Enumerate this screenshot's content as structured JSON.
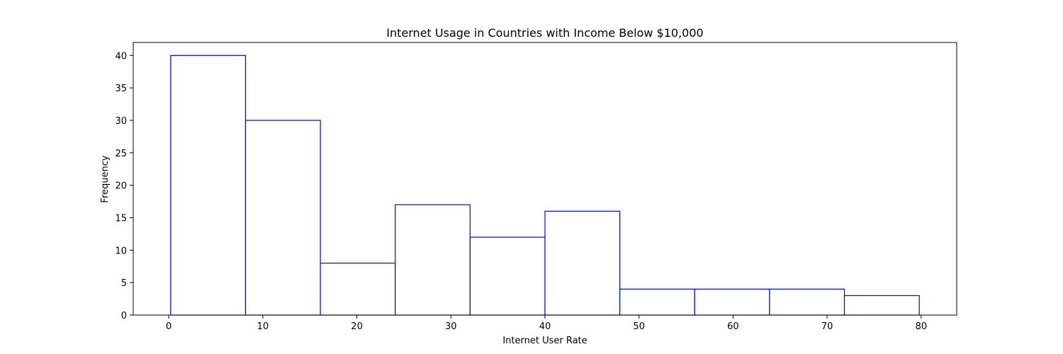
{
  "chart_data": {
    "type": "bar",
    "title": "Internet Usage in Countries with Income Below $10,000",
    "xlabel": "Internet User Rate",
    "ylabel": "Frequency",
    "bins": [
      {
        "start": 0.2,
        "end": 8.16,
        "count": 40
      },
      {
        "start": 8.16,
        "end": 16.12,
        "count": 30
      },
      {
        "start": 16.12,
        "end": 24.08,
        "count": 8
      },
      {
        "start": 24.08,
        "end": 32.04,
        "count": 17
      },
      {
        "start": 32.04,
        "end": 40.0,
        "count": 12
      },
      {
        "start": 40.0,
        "end": 47.96,
        "count": 16
      },
      {
        "start": 47.96,
        "end": 55.92,
        "count": 4
      },
      {
        "start": 55.92,
        "end": 63.88,
        "count": 4
      },
      {
        "start": 63.88,
        "end": 71.84,
        "count": 4
      },
      {
        "start": 71.84,
        "end": 79.8,
        "count": 3
      }
    ],
    "xlim": [
      -3.78,
      83.78
    ],
    "ylim": [
      0,
      42
    ],
    "xticks": [
      0,
      10,
      20,
      30,
      40,
      50,
      60,
      70,
      80
    ],
    "yticks": [
      0,
      5,
      10,
      15,
      20,
      25,
      30,
      35,
      40
    ],
    "bar_fill": "#ffffff",
    "bar_edge_color": "#0000ff",
    "grid": false,
    "legend": false
  }
}
